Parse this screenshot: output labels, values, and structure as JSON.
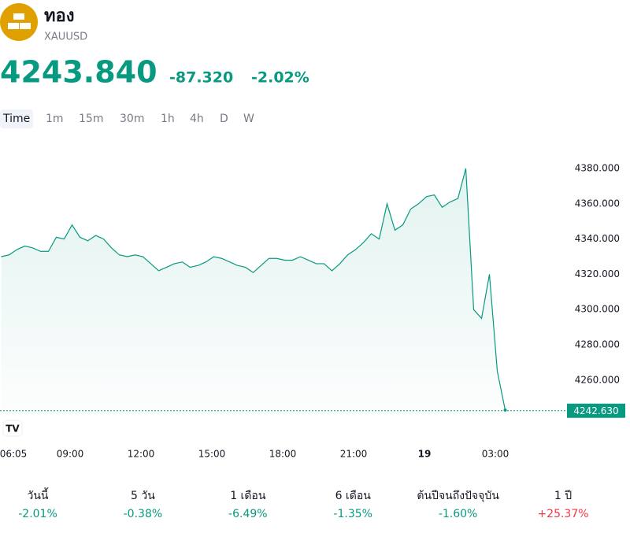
{
  "header": {
    "title": "ทอง",
    "symbol": "XAUUSD",
    "price": "4243.840",
    "change": "-87.320",
    "change_pct": "-2.02%"
  },
  "timeframes": [
    "Time",
    "1m",
    "15m",
    "30m",
    "1h",
    "4h",
    "D",
    "W"
  ],
  "chart_data": {
    "type": "line",
    "color": "#089981",
    "x": [
      "06:05",
      "06:25",
      "06:45",
      "07:05",
      "07:25",
      "07:45",
      "08:05",
      "08:25",
      "08:45",
      "09:05",
      "09:25",
      "09:45",
      "10:05",
      "10:25",
      "10:45",
      "11:05",
      "11:25",
      "11:45",
      "12:05",
      "12:25",
      "12:45",
      "13:05",
      "13:25",
      "13:45",
      "14:05",
      "14:25",
      "14:45",
      "15:05",
      "15:25",
      "15:45",
      "16:05",
      "16:25",
      "16:45",
      "17:05",
      "17:25",
      "17:45",
      "18:05",
      "18:25",
      "18:45",
      "19:05",
      "19:25",
      "19:45",
      "20:05",
      "20:25",
      "20:45",
      "21:05",
      "21:25",
      "21:45",
      "22:05",
      "22:25",
      "22:45",
      "23:05",
      "23:25",
      "23:45",
      "00:05",
      "00:25",
      "00:45",
      "01:05",
      "01:25",
      "01:45",
      "02:05",
      "02:25",
      "02:45",
      "03:05",
      "03:25"
    ],
    "values": [
      4330,
      4331,
      4334,
      4336,
      4335,
      4333,
      4333,
      4341,
      4340,
      4348,
      4341,
      4339,
      4342,
      4340,
      4335,
      4331,
      4330,
      4331,
      4330,
      4326,
      4322,
      4324,
      4326,
      4327,
      4324,
      4325,
      4327,
      4330,
      4329,
      4327,
      4325,
      4324,
      4321,
      4325,
      4329,
      4329,
      4328,
      4328,
      4330,
      4328,
      4326,
      4326,
      4322,
      4326,
      4331,
      4334,
      4338,
      4343,
      4340,
      4360,
      4345,
      4348,
      4357,
      4360,
      4364,
      4365,
      4358,
      4361,
      4363,
      4380,
      4300,
      4295,
      4320,
      4265,
      4243
    ],
    "ylim": [
      4240,
      4390
    ],
    "yticks": [
      {
        "value": 4260,
        "label": "4260.000"
      },
      {
        "value": 4280,
        "label": "4280.000"
      },
      {
        "value": 4300,
        "label": "4300.000"
      },
      {
        "value": 4320,
        "label": "4320.000"
      },
      {
        "value": 4340,
        "label": "4340.000"
      },
      {
        "value": 4360,
        "label": "4360.000"
      },
      {
        "value": 4380,
        "label": "4380.000"
      }
    ],
    "xticks": [
      "06:05",
      "09:00",
      "12:00",
      "15:00",
      "18:00",
      "21:00",
      {
        "value": "00:00",
        "label": "19"
      },
      "03:00"
    ],
    "last_price": {
      "value": 4242.63,
      "label": "4242.630"
    }
  },
  "performance": [
    {
      "period": "วันนี้",
      "change": "-2.01%"
    },
    {
      "period": "5 วัน",
      "change": "-0.38%"
    },
    {
      "period": "1 เดือน",
      "change": "-6.49%"
    },
    {
      "period": "6 เดือน",
      "change": "-1.35%"
    },
    {
      "period": "ต้นปีจนถึงปัจจุบัน",
      "change": "-1.60%"
    },
    {
      "period": "1 ปี",
      "change": "+25.37%"
    }
  ]
}
